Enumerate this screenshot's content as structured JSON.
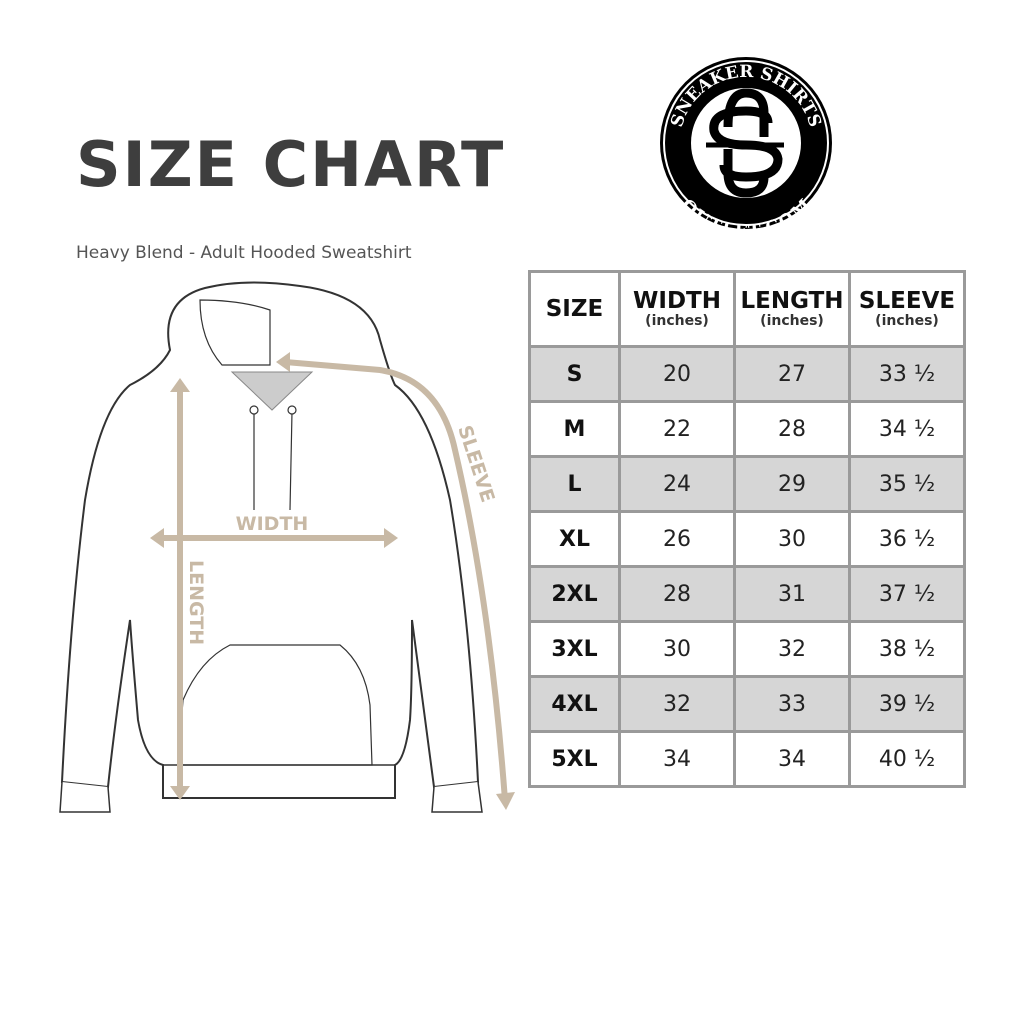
{
  "title": "SIZE CHART",
  "subtitle": "Heavy Blend - Adult Hooded Sweatshirt",
  "logo": {
    "top_text": "SNEAKER SHIRTS",
    "bottom_text": "OUTLET.COM",
    "monogram": "SS"
  },
  "diagram": {
    "width_label": "WIDTH",
    "length_label": "LENGTH",
    "sleeve_label": "SLEEVE",
    "measure_color": "#c8b9a5"
  },
  "table": {
    "headers": [
      {
        "label": "SIZE",
        "unit": ""
      },
      {
        "label": "WIDTH",
        "unit": "(inches)"
      },
      {
        "label": "LENGTH",
        "unit": "(inches)"
      },
      {
        "label": "SLEEVE",
        "unit": "(inches)"
      }
    ],
    "rows": [
      [
        "S",
        "20",
        "27",
        "33 ½"
      ],
      [
        "M",
        "22",
        "28",
        "34 ½"
      ],
      [
        "L",
        "24",
        "29",
        "35 ½"
      ],
      [
        "XL",
        "26",
        "30",
        "36 ½"
      ],
      [
        "2XL",
        "28",
        "31",
        "37 ½"
      ],
      [
        "3XL",
        "30",
        "32",
        "38 ½"
      ],
      [
        "4XL",
        "32",
        "33",
        "39 ½"
      ],
      [
        "5XL",
        "34",
        "34",
        "40 ½"
      ]
    ],
    "shade_color": "#d6d6d6",
    "border_color": "#9a9a9a"
  }
}
